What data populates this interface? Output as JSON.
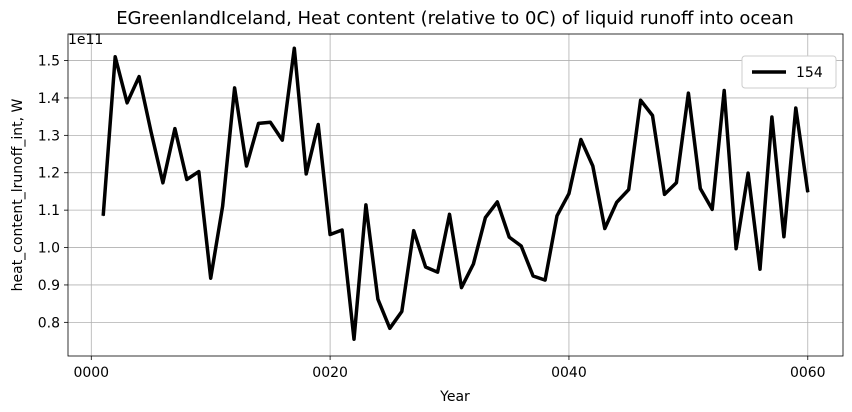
{
  "chart_data": {
    "type": "line",
    "title": "EGreenlandIceland, Heat content (relative to 0C) of liquid runoff into ocean",
    "xlabel": "Year",
    "ylabel": "heat_content_lrunoff_int, W",
    "y_multiplier_label": "1e11",
    "xlim": [
      -1.95,
      62.95
    ],
    "ylim": [
      0.71,
      1.571
    ],
    "x_ticks": [
      0,
      20,
      40,
      60
    ],
    "x_tick_labels": [
      "0000",
      "0020",
      "0040",
      "0060"
    ],
    "y_ticks": [
      0.8,
      0.9,
      1.0,
      1.1,
      1.2,
      1.3,
      1.4,
      1.5
    ],
    "y_tick_labels": [
      "0.8",
      "0.9",
      "1.0",
      "1.1",
      "1.2",
      "1.3",
      "1.4",
      "1.5"
    ],
    "grid": true,
    "legend_position": "top-right",
    "series": [
      {
        "name": "154",
        "color": "#000000",
        "x": [
          1,
          2,
          3,
          4,
          5,
          6,
          7,
          8,
          9,
          10,
          11,
          12,
          13,
          14,
          15,
          16,
          17,
          18,
          19,
          20,
          21,
          22,
          23,
          24,
          25,
          26,
          27,
          28,
          29,
          30,
          31,
          32,
          33,
          34,
          35,
          36,
          37,
          38,
          39,
          40,
          41,
          42,
          43,
          44,
          45,
          46,
          47,
          48,
          49,
          50,
          51,
          52,
          53,
          54,
          55,
          56,
          57,
          58,
          59,
          60
        ],
        "values": [
          1.085,
          1.51,
          1.387,
          1.457,
          1.31,
          1.173,
          1.318,
          1.182,
          1.203,
          0.918,
          1.11,
          1.427,
          1.218,
          1.332,
          1.335,
          1.287,
          1.533,
          1.197,
          1.329,
          1.035,
          1.047,
          0.755,
          1.114,
          0.862,
          0.784,
          0.829,
          1.045,
          0.948,
          0.934,
          1.089,
          0.893,
          0.956,
          1.08,
          1.122,
          1.028,
          1.004,
          0.924,
          0.913,
          1.085,
          1.144,
          1.289,
          1.218,
          1.051,
          1.121,
          1.155,
          1.394,
          1.353,
          1.142,
          1.173,
          1.413,
          1.158,
          1.102,
          1.42,
          0.997,
          1.199,
          0.942,
          1.349,
          1.029,
          1.373,
          1.148
        ]
      }
    ]
  }
}
